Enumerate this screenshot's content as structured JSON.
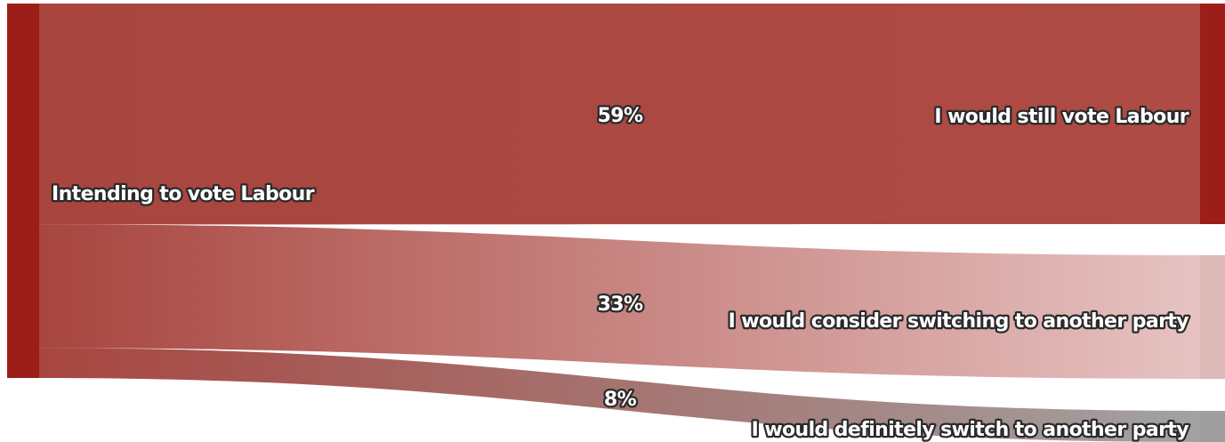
{
  "chart_data": {
    "type": "sankey",
    "source": {
      "label": "Intending to vote Labour",
      "color": "#9b1e18"
    },
    "flows": [
      {
        "label": "I would still vote Labour",
        "percent_label": "59%",
        "value": 59,
        "color_start": "#a8453f",
        "color_end": "#ad4b44",
        "node_color": "#9b1e18"
      },
      {
        "label": "I would consider switching to another party",
        "percent_label": "33%",
        "value": 33,
        "color_start": "#a8453f",
        "color_end": "#e6c3c2",
        "node_color": "#dcb8b7"
      },
      {
        "label": "I would definitely switch to another party",
        "percent_label": "8%",
        "value": 8,
        "color_start": "#a8453f",
        "color_end": "#a2a2a2",
        "node_color": "#9e9e9e"
      }
    ]
  }
}
